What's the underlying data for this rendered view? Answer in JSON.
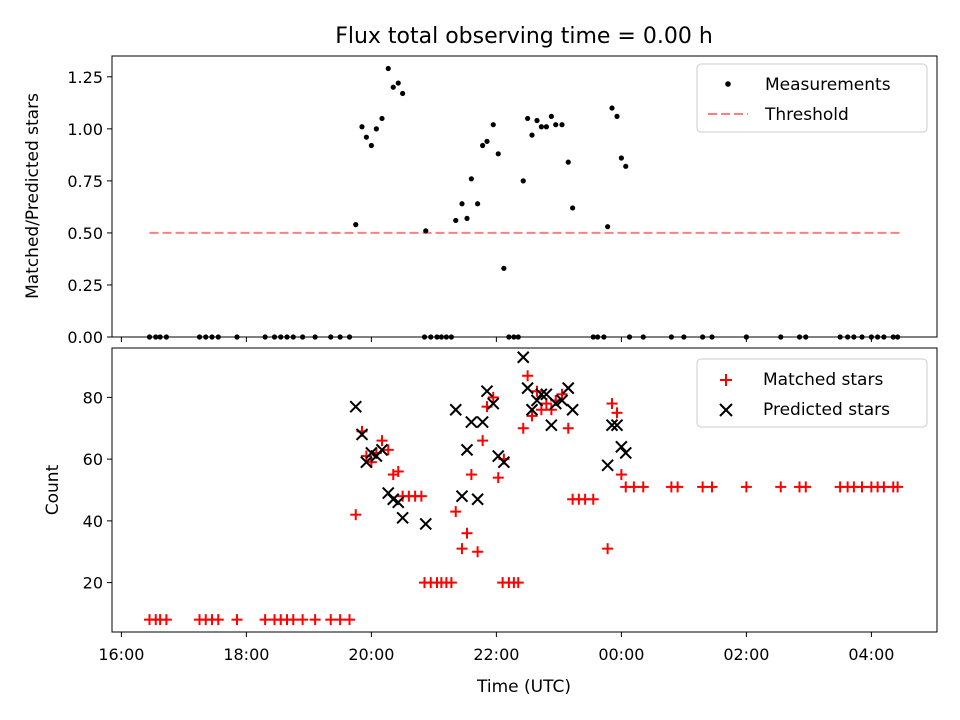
{
  "chart_data": [
    {
      "type": "scatter",
      "title": "Flux total observing time = 0.00 h",
      "xlabel": "",
      "ylabel": "Matched/Predicted stars",
      "xlim": [
        15.85,
        29.05
      ],
      "ylim": [
        0,
        1.35
      ],
      "x_ticks": [
        "16:00",
        "18:00",
        "20:00",
        "22:00",
        "00:00",
        "02:00",
        "04:00"
      ],
      "x_tick_values": [
        16,
        18,
        20,
        22,
        24,
        26,
        28
      ],
      "y_ticks": [
        "0.00",
        "0.25",
        "0.50",
        "0.75",
        "1.00",
        "1.25"
      ],
      "y_tick_values": [
        0,
        0.25,
        0.5,
        0.75,
        1.0,
        1.25
      ],
      "legend": [
        "Measurements",
        "Threshold"
      ],
      "legend_position": "top-right",
      "series": [
        {
          "name": "Measurements",
          "marker": "dot",
          "color": "#000000",
          "points": [
            [
              16.45,
              0
            ],
            [
              16.55,
              0
            ],
            [
              16.62,
              0
            ],
            [
              16.72,
              0
            ],
            [
              17.25,
              0
            ],
            [
              17.35,
              0
            ],
            [
              17.45,
              0
            ],
            [
              17.55,
              0
            ],
            [
              17.85,
              0
            ],
            [
              18.3,
              0
            ],
            [
              18.45,
              0
            ],
            [
              18.55,
              0
            ],
            [
              18.65,
              0
            ],
            [
              18.75,
              0
            ],
            [
              18.9,
              0
            ],
            [
              19.1,
              0
            ],
            [
              19.35,
              0
            ],
            [
              19.5,
              0
            ],
            [
              19.65,
              0
            ],
            [
              19.75,
              0.54
            ],
            [
              19.85,
              1.01
            ],
            [
              19.92,
              0.96
            ],
            [
              20.0,
              0.92
            ],
            [
              20.08,
              1.0
            ],
            [
              20.17,
              1.05
            ],
            [
              20.27,
              1.29
            ],
            [
              20.35,
              1.2
            ],
            [
              20.43,
              1.22
            ],
            [
              20.5,
              1.17
            ],
            [
              20.87,
              0.51
            ],
            [
              20.85,
              0
            ],
            [
              20.95,
              0
            ],
            [
              21.05,
              0
            ],
            [
              21.12,
              0
            ],
            [
              21.2,
              0
            ],
            [
              21.28,
              0
            ],
            [
              21.35,
              0.56
            ],
            [
              21.45,
              0.64
            ],
            [
              21.53,
              0.57
            ],
            [
              21.6,
              0.76
            ],
            [
              21.7,
              0.64
            ],
            [
              21.78,
              0.92
            ],
            [
              21.85,
              0.94
            ],
            [
              21.95,
              1.02
            ],
            [
              22.03,
              0.88
            ],
            [
              22.12,
              0.33
            ],
            [
              22.2,
              0
            ],
            [
              22.28,
              0
            ],
            [
              22.35,
              0
            ],
            [
              22.43,
              0.75
            ],
            [
              22.5,
              1.05
            ],
            [
              22.57,
              0.97
            ],
            [
              22.65,
              1.04
            ],
            [
              22.72,
              1.01
            ],
            [
              22.8,
              1.01
            ],
            [
              22.88,
              1.06
            ],
            [
              22.95,
              1.02
            ],
            [
              23.05,
              1.02
            ],
            [
              23.15,
              0.84
            ],
            [
              23.22,
              0.62
            ],
            [
              23.55,
              0
            ],
            [
              23.62,
              0
            ],
            [
              23.72,
              0
            ],
            [
              23.78,
              0.53
            ],
            [
              23.85,
              1.1
            ],
            [
              23.93,
              1.06
            ],
            [
              24.0,
              0.86
            ],
            [
              24.07,
              0.82
            ],
            [
              24.13,
              0
            ],
            [
              24.35,
              0
            ],
            [
              24.8,
              0
            ],
            [
              25.0,
              0
            ],
            [
              25.3,
              0
            ],
            [
              25.45,
              0
            ],
            [
              26.0,
              0
            ],
            [
              26.55,
              0
            ],
            [
              26.85,
              0
            ],
            [
              26.95,
              0
            ],
            [
              27.5,
              0
            ],
            [
              27.62,
              0
            ],
            [
              27.72,
              0
            ],
            [
              27.85,
              0
            ],
            [
              28.0,
              0
            ],
            [
              28.1,
              0
            ],
            [
              28.2,
              0
            ],
            [
              28.35,
              0
            ],
            [
              28.42,
              0
            ]
          ]
        },
        {
          "name": "Threshold",
          "line": "dashed",
          "color": "#ff7f7f",
          "x": [
            16.45,
            28.45
          ],
          "y": [
            0.5,
            0.5
          ]
        }
      ]
    },
    {
      "type": "scatter",
      "title": "",
      "xlabel": "Time (UTC)",
      "ylabel": "Count",
      "xlim": [
        15.85,
        29.05
      ],
      "ylim": [
        4,
        96
      ],
      "x_ticks": [
        "16:00",
        "18:00",
        "20:00",
        "22:00",
        "00:00",
        "02:00",
        "04:00"
      ],
      "x_tick_values": [
        16,
        18,
        20,
        22,
        24,
        26,
        28
      ],
      "y_ticks": [
        "20",
        "40",
        "60",
        "80"
      ],
      "y_tick_values": [
        20,
        40,
        60,
        80
      ],
      "legend": [
        "Matched stars",
        "Predicted stars"
      ],
      "legend_position": "top-right",
      "series": [
        {
          "name": "Matched stars",
          "marker": "plus",
          "color": "#ff0000",
          "points": [
            [
              16.45,
              8
            ],
            [
              16.55,
              8
            ],
            [
              16.62,
              8
            ],
            [
              16.72,
              8
            ],
            [
              17.25,
              8
            ],
            [
              17.35,
              8
            ],
            [
              17.45,
              8
            ],
            [
              17.55,
              8
            ],
            [
              17.85,
              8
            ],
            [
              18.3,
              8
            ],
            [
              18.45,
              8
            ],
            [
              18.55,
              8
            ],
            [
              18.65,
              8
            ],
            [
              18.75,
              8
            ],
            [
              18.9,
              8
            ],
            [
              19.1,
              8
            ],
            [
              19.35,
              8
            ],
            [
              19.5,
              8
            ],
            [
              19.65,
              8
            ],
            [
              19.75,
              42
            ],
            [
              19.85,
              69
            ],
            [
              19.92,
              61
            ],
            [
              20.0,
              59
            ],
            [
              20.08,
              62
            ],
            [
              20.17,
              66
            ],
            [
              20.27,
              63
            ],
            [
              20.35,
              55
            ],
            [
              20.43,
              56
            ],
            [
              20.5,
              48
            ],
            [
              20.6,
              48
            ],
            [
              20.7,
              48
            ],
            [
              20.8,
              48
            ],
            [
              20.85,
              20
            ],
            [
              20.95,
              20
            ],
            [
              21.05,
              20
            ],
            [
              21.12,
              20
            ],
            [
              21.2,
              20
            ],
            [
              21.28,
              20
            ],
            [
              21.35,
              43
            ],
            [
              21.45,
              31
            ],
            [
              21.53,
              36
            ],
            [
              21.6,
              55
            ],
            [
              21.7,
              30
            ],
            [
              21.78,
              66
            ],
            [
              21.85,
              77
            ],
            [
              21.95,
              80
            ],
            [
              22.03,
              54
            ],
            [
              22.12,
              60
            ],
            [
              22.1,
              20
            ],
            [
              22.2,
              20
            ],
            [
              22.28,
              20
            ],
            [
              22.35,
              20
            ],
            [
              22.43,
              70
            ],
            [
              22.5,
              87
            ],
            [
              22.57,
              74
            ],
            [
              22.65,
              82
            ],
            [
              22.72,
              76
            ],
            [
              22.8,
              78
            ],
            [
              22.88,
              76
            ],
            [
              22.95,
              79
            ],
            [
              23.05,
              81
            ],
            [
              23.15,
              70
            ],
            [
              23.22,
              47
            ],
            [
              23.32,
              47
            ],
            [
              23.42,
              47
            ],
            [
              23.55,
              47
            ],
            [
              23.78,
              31
            ],
            [
              23.85,
              78
            ],
            [
              23.93,
              75
            ],
            [
              24.0,
              55
            ],
            [
              24.07,
              51
            ],
            [
              24.2,
              51
            ],
            [
              24.35,
              51
            ],
            [
              24.8,
              51
            ],
            [
              24.9,
              51
            ],
            [
              25.3,
              51
            ],
            [
              25.45,
              51
            ],
            [
              26.0,
              51
            ],
            [
              26.55,
              51
            ],
            [
              26.85,
              51
            ],
            [
              26.95,
              51
            ],
            [
              27.5,
              51
            ],
            [
              27.62,
              51
            ],
            [
              27.72,
              51
            ],
            [
              27.85,
              51
            ],
            [
              28.0,
              51
            ],
            [
              28.1,
              51
            ],
            [
              28.2,
              51
            ],
            [
              28.35,
              51
            ],
            [
              28.42,
              51
            ]
          ]
        },
        {
          "name": "Predicted stars",
          "marker": "x",
          "color": "#000000",
          "points": [
            [
              19.75,
              77
            ],
            [
              19.85,
              68
            ],
            [
              19.92,
              59
            ],
            [
              20.0,
              62
            ],
            [
              20.08,
              61
            ],
            [
              20.17,
              63
            ],
            [
              20.27,
              49
            ],
            [
              20.35,
              47
            ],
            [
              20.43,
              46
            ],
            [
              20.5,
              41
            ],
            [
              20.87,
              39
            ],
            [
              21.35,
              76
            ],
            [
              21.45,
              48
            ],
            [
              21.53,
              63
            ],
            [
              21.6,
              72
            ],
            [
              21.7,
              47
            ],
            [
              21.78,
              72
            ],
            [
              21.85,
              82
            ],
            [
              21.95,
              78
            ],
            [
              22.03,
              61
            ],
            [
              22.12,
              59
            ],
            [
              22.43,
              93
            ],
            [
              22.5,
              83
            ],
            [
              22.57,
              76
            ],
            [
              22.65,
              79
            ],
            [
              22.72,
              81
            ],
            [
              22.8,
              81
            ],
            [
              22.88,
              71
            ],
            [
              22.95,
              78
            ],
            [
              23.05,
              79
            ],
            [
              23.15,
              83
            ],
            [
              23.22,
              76
            ],
            [
              23.78,
              58
            ],
            [
              23.85,
              71
            ],
            [
              23.93,
              71
            ],
            [
              24.0,
              64
            ],
            [
              24.07,
              62
            ]
          ]
        }
      ]
    }
  ]
}
